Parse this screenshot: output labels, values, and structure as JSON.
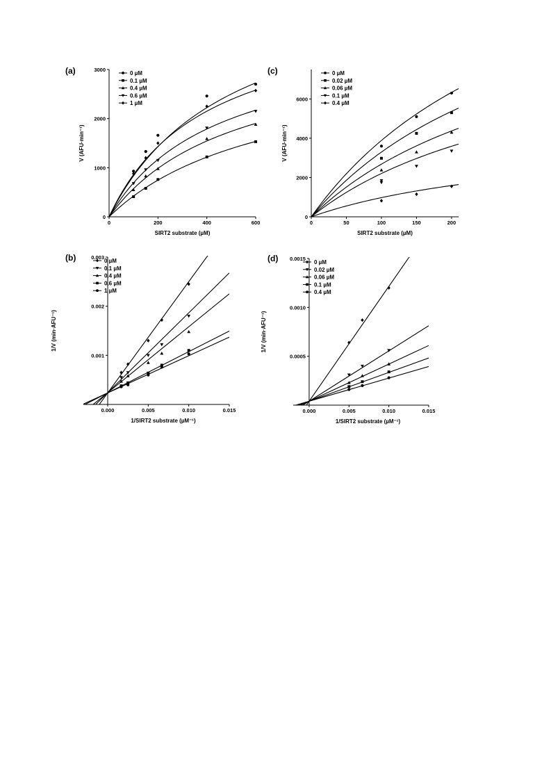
{
  "figure": {
    "marker_color": "#000000"
  },
  "chart_data": [
    {
      "panel": "(a)",
      "type": "scatter",
      "xlabel": "SIRT2 substrate (µM)",
      "ylabel": "V (AFU·min⁻¹)",
      "xlim": [
        0,
        600
      ],
      "ylim": [
        0,
        3000
      ],
      "xticks": [
        0,
        200,
        400,
        600
      ],
      "yticks": [
        0,
        1000,
        2000,
        3000
      ],
      "xtick_labels": [
        "0",
        "200",
        "400",
        "600"
      ],
      "ytick_labels": [
        "0",
        "1000",
        "2000",
        "3000"
      ],
      "legend_position": "top-left",
      "fit": "michaelis-menten",
      "series": [
        {
          "name": "0 µM",
          "marker": "circle",
          "vmax": 5000,
          "km": 500,
          "x": [
            100,
            150,
            200,
            400,
            600
          ],
          "y": [
            930,
            1330,
            1660,
            2460,
            2700
          ]
        },
        {
          "name": "0.1 µM",
          "marker": "square",
          "vmax": 3250,
          "km": 670,
          "x": [
            100,
            150,
            200,
            400,
            600
          ],
          "y": [
            410,
            580,
            760,
            1220,
            1530
          ]
        },
        {
          "name": "0.4 µM",
          "marker": "triangle-up",
          "vmax": 3550,
          "km": 520,
          "x": [
            100,
            150,
            200,
            400,
            600
          ],
          "y": [
            550,
            830,
            980,
            1590,
            1880
          ]
        },
        {
          "name": "0.6 µM",
          "marker": "triangle-down",
          "vmax": 3800,
          "km": 450,
          "x": [
            100,
            150,
            200,
            400,
            600
          ],
          "y": [
            680,
            960,
            1150,
            1810,
            2150
          ]
        },
        {
          "name": "1 µM",
          "marker": "diamond",
          "vmax": 4300,
          "km": 400,
          "x": [
            100,
            150,
            200,
            400,
            600
          ],
          "y": [
            880,
            1200,
            1500,
            2250,
            2570
          ]
        }
      ]
    },
    {
      "panel": "(c)",
      "type": "scatter",
      "xlabel": "SIRT2 substrate (µM)",
      "ylabel": "V (AFU·min⁻¹)",
      "xlim": [
        0,
        210
      ],
      "ylim": [
        0,
        7500
      ],
      "xticks": [
        0,
        50,
        100,
        150,
        200
      ],
      "yticks": [
        0,
        2000,
        4000,
        6000
      ],
      "xtick_labels": [
        "0",
        "50",
        "100",
        "150",
        "200"
      ],
      "ytick_labels": [
        "0",
        "2000",
        "4000",
        "6000"
      ],
      "legend_position": "top-left",
      "fit": "michaelis-menten",
      "series": [
        {
          "name": "0 µM",
          "marker": "circle",
          "vmax": 17100,
          "km": 340,
          "x": [
            100,
            150,
            200
          ],
          "y": [
            3600,
            5100,
            6300
          ]
        },
        {
          "name": "0.02 µM",
          "marker": "square",
          "vmax": 14500,
          "km": 340,
          "x": [
            100,
            150,
            200
          ],
          "y": [
            2980,
            4250,
            5300
          ]
        },
        {
          "name": "0.06 µM",
          "marker": "triangle-up",
          "vmax": 11800,
          "km": 340,
          "x": [
            100,
            150,
            200
          ],
          "y": [
            2380,
            3300,
            4300
          ]
        },
        {
          "name": "0.1 µM",
          "marker": "triangle-down",
          "vmax": 9700,
          "km": 340,
          "x": [
            100,
            100,
            150,
            200
          ],
          "y": [
            1850,
            1750,
            2580,
            3350
          ]
        },
        {
          "name": "0.4 µM",
          "marker": "diamond",
          "vmax": 4300,
          "km": 340,
          "x": [
            100,
            150,
            200
          ],
          "y": [
            820,
            1150,
            1550
          ]
        }
      ]
    },
    {
      "panel": "(b)",
      "type": "scatter",
      "xlabel": "1/SIRT2 substrate (µM⁻¹)",
      "ylabel": "1/V (min·AFU⁻¹)",
      "xlim": [
        -0.003,
        0.015
      ],
      "ylim": [
        0,
        0.003
      ],
      "xticks": [
        0,
        0.005,
        0.01,
        0.015
      ],
      "yticks": [
        0.001,
        0.002,
        0.003
      ],
      "xtick_labels": [
        "0.000",
        "0.005",
        "0.010",
        "0.015"
      ],
      "ytick_labels": [
        "0.001",
        "0.002",
        "0.003"
      ],
      "legend_position": "top-left",
      "fit": "linear",
      "series": [
        {
          "name": "0 µM",
          "marker": "diamond",
          "intercept": 0.000235,
          "slope": 0.2265,
          "x": [
            0.00167,
            0.0025,
            0.005,
            0.00667,
            0.01
          ],
          "y": [
            0.00065,
            0.00082,
            0.0013,
            0.00172,
            0.00245
          ]
        },
        {
          "name": "0.1 µM",
          "marker": "triangle-down",
          "intercept": 0.00024,
          "slope": 0.1625,
          "x": [
            0.00167,
            0.0025,
            0.005,
            0.00667,
            0.01
          ],
          "y": [
            0.00055,
            0.00065,
            0.001,
            0.00122,
            0.0018
          ]
        },
        {
          "name": "0.4 µM",
          "marker": "triangle-up",
          "intercept": 0.00024,
          "slope": 0.1342,
          "x": [
            0.00167,
            0.0025,
            0.005,
            0.00667,
            0.01
          ],
          "y": [
            0.00047,
            0.00058,
            0.00085,
            0.00104,
            0.00148
          ]
        },
        {
          "name": "0.6 µM",
          "marker": "square",
          "intercept": 0.000235,
          "slope": 0.084,
          "x": [
            0.00167,
            0.0025,
            0.005,
            0.00667,
            0.01
          ],
          "y": [
            0.00038,
            0.00044,
            0.00064,
            0.0008,
            0.0011
          ]
        },
        {
          "name": "1 µM",
          "marker": "circle",
          "intercept": 0.000235,
          "slope": 0.0757,
          "x": [
            0.00167,
            0.0025,
            0.005,
            0.00667,
            0.01
          ],
          "y": [
            0.00036,
            0.0004,
            0.0006,
            0.00076,
            0.00103
          ]
        }
      ]
    },
    {
      "panel": "(d)",
      "type": "scatter",
      "xlabel": "1/SIRT2 substrate (µM⁻¹)",
      "ylabel": "1/V (min·AFU⁻¹)",
      "xlim": [
        -0.002,
        0.015
      ],
      "ylim": [
        0,
        0.0015
      ],
      "xticks": [
        0,
        0.005,
        0.01,
        0.015
      ],
      "yticks": [
        0.0005,
        0.001,
        0.0015
      ],
      "xtick_labels": [
        "0.000",
        "0.005",
        "0.010",
        "0.015"
      ],
      "ytick_labels": [
        "0.0005",
        "0.0010",
        "0.0015"
      ],
      "legend_position": "top-left",
      "fit": "linear",
      "series": [
        {
          "name": "0 µM",
          "marker": "diamond",
          "intercept": 4e-05,
          "slope": 0.1175,
          "x": [
            0.005,
            0.00667,
            0.01
          ],
          "y": [
            0.00064,
            0.00087,
            0.0012
          ]
        },
        {
          "name": "0.02 µM",
          "marker": "triangle-down",
          "intercept": 4e-05,
          "slope": 0.0515,
          "x": [
            0.005,
            0.00667,
            0.01
          ],
          "y": [
            0.00031,
            0.0004,
            0.00056
          ]
        },
        {
          "name": "0.06 µM",
          "marker": "triangle-up",
          "intercept": 4e-05,
          "slope": 0.038,
          "x": [
            0.005,
            0.00667,
            0.01
          ],
          "y": [
            0.00023,
            0.0003,
            0.00042
          ]
        },
        {
          "name": "0.1 µM",
          "marker": "square",
          "intercept": 4e-05,
          "slope": 0.0295,
          "x": [
            0.005,
            0.00667,
            0.01
          ],
          "y": [
            0.00019,
            0.00024,
            0.00034
          ]
        },
        {
          "name": "0.4 µM",
          "marker": "circle",
          "intercept": 4e-05,
          "slope": 0.0237,
          "x": [
            0.005,
            0.00667,
            0.01
          ],
          "y": [
            0.00016,
            0.0002,
            0.00028
          ]
        }
      ]
    }
  ]
}
